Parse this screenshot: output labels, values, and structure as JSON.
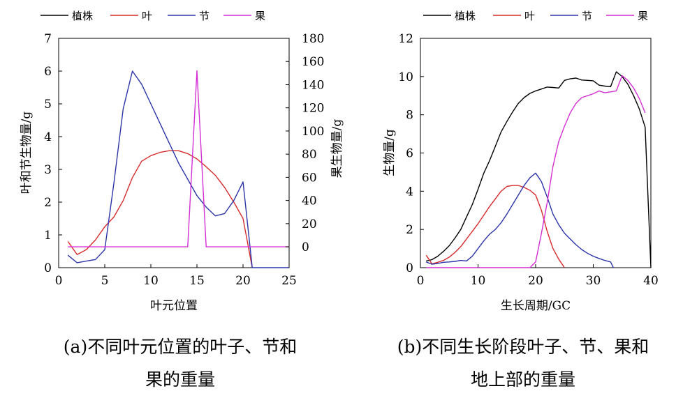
{
  "chart_data": [
    {
      "id": "a",
      "type": "line",
      "caption": [
        "(a)不同叶元位置的叶子、节和",
        "果的重量"
      ],
      "xlabel": "叶元位置",
      "ylabel": "叶和节生物量/g",
      "y2label": "果生物量/g",
      "xlim": [
        0,
        25
      ],
      "ylim": [
        0,
        7
      ],
      "y2lim": [
        -18,
        180
      ],
      "xticks": [
        0,
        5,
        10,
        15,
        20,
        25
      ],
      "yticks": [
        0,
        1,
        2,
        3,
        4,
        5,
        6,
        7
      ],
      "y2ticks": [
        0,
        20,
        40,
        60,
        80,
        100,
        120,
        140,
        160,
        180
      ],
      "legend_position": "top",
      "series": [
        {
          "name": "植株",
          "color": "#000000",
          "axis": "left",
          "x": [],
          "y": []
        },
        {
          "name": "叶",
          "color": "#d62c2c",
          "axis": "left",
          "x": [
            1,
            2,
            3,
            4,
            5,
            6,
            7,
            8,
            9,
            10,
            11,
            12,
            13,
            14,
            15,
            16,
            17,
            18,
            19,
            20,
            21
          ],
          "y": [
            0.8,
            0.4,
            0.55,
            0.85,
            1.25,
            1.55,
            2.05,
            2.75,
            3.25,
            3.42,
            3.52,
            3.57,
            3.57,
            3.48,
            3.32,
            3.08,
            2.82,
            2.45,
            2.0,
            1.5,
            0.0
          ]
        },
        {
          "name": "节",
          "color": "#2c35a8",
          "axis": "left",
          "x": [
            1,
            2,
            3,
            4,
            5,
            6,
            7,
            8,
            9,
            10,
            11,
            12,
            13,
            14,
            15,
            16,
            17,
            18,
            19,
            20,
            21,
            22,
            25
          ],
          "y": [
            0.38,
            0.15,
            0.2,
            0.25,
            0.55,
            2.6,
            4.85,
            6.0,
            5.6,
            5.0,
            4.4,
            3.8,
            3.2,
            2.7,
            2.2,
            1.85,
            1.58,
            1.65,
            2.05,
            2.62,
            0.0,
            0.0,
            0.0
          ]
        },
        {
          "name": "果",
          "color": "#d42fd4",
          "axis": "right",
          "x": [
            1,
            14,
            15,
            16,
            25
          ],
          "y": [
            0,
            0,
            152,
            0,
            0
          ]
        }
      ]
    },
    {
      "id": "b",
      "type": "line",
      "caption": [
        "(b)不同生长阶段叶子、节、果和",
        "地上部的重量"
      ],
      "xlabel": "生长周期/GC",
      "ylabel": "生物量/g",
      "xlim": [
        0,
        40
      ],
      "ylim": [
        0,
        12
      ],
      "xticks": [
        0,
        10,
        20,
        30,
        40
      ],
      "yticks": [
        0,
        2,
        4,
        6,
        8,
        10,
        12
      ],
      "legend_position": "top",
      "series": [
        {
          "name": "植株",
          "color": "#000000",
          "x": [
            1,
            2,
            3,
            4,
            5,
            6,
            7,
            8,
            9,
            10,
            11,
            12,
            13,
            14,
            15,
            16,
            17,
            18,
            19,
            20,
            21,
            22,
            23,
            24,
            25,
            26,
            27,
            28,
            29,
            30,
            31,
            32,
            33,
            34,
            35,
            36,
            37,
            38,
            39,
            40
          ],
          "y": [
            0.35,
            0.42,
            0.6,
            0.85,
            1.15,
            1.55,
            2.0,
            2.65,
            3.3,
            4.1,
            4.95,
            5.6,
            6.35,
            7.1,
            7.65,
            8.15,
            8.6,
            8.9,
            9.12,
            9.25,
            9.35,
            9.45,
            9.43,
            9.4,
            9.8,
            9.88,
            9.92,
            9.82,
            9.8,
            9.78,
            9.55,
            9.5,
            9.47,
            10.25,
            10.0,
            9.6,
            9.0,
            8.3,
            7.35,
            0.0
          ]
        },
        {
          "name": "叶",
          "color": "#d62c2c",
          "x": [
            1,
            2,
            3,
            4,
            5,
            6,
            7,
            8,
            9,
            10,
            11,
            12,
            13,
            14,
            15,
            16,
            17,
            18,
            19,
            20,
            21,
            22,
            23,
            24,
            25
          ],
          "y": [
            0.65,
            0.2,
            0.28,
            0.38,
            0.55,
            0.8,
            1.1,
            1.5,
            1.9,
            2.3,
            2.75,
            3.2,
            3.6,
            4.0,
            4.25,
            4.3,
            4.3,
            4.2,
            4.05,
            3.8,
            3.0,
            1.9,
            1.0,
            0.45,
            0.0
          ]
        },
        {
          "name": "节",
          "color": "#2c35a8",
          "x": [
            1,
            2,
            3,
            4,
            5,
            6,
            7,
            8,
            9,
            10,
            11,
            12,
            13,
            14,
            15,
            16,
            17,
            18,
            19,
            20,
            21,
            22,
            23,
            24,
            25,
            26,
            27,
            28,
            29,
            30,
            31,
            32,
            33,
            33.5
          ],
          "y": [
            0.3,
            0.18,
            0.22,
            0.28,
            0.3,
            0.33,
            0.38,
            0.35,
            0.6,
            1.0,
            1.4,
            1.75,
            2.0,
            2.35,
            2.8,
            3.3,
            3.8,
            4.3,
            4.7,
            4.95,
            4.5,
            3.7,
            2.8,
            2.25,
            1.8,
            1.5,
            1.2,
            0.95,
            0.75,
            0.6,
            0.48,
            0.38,
            0.3,
            0.0
          ]
        },
        {
          "name": "果",
          "color": "#d42fd4",
          "x": [
            1,
            19,
            20,
            21,
            22,
            23,
            24,
            25,
            26,
            27,
            28,
            29,
            30,
            31,
            32,
            33,
            34,
            35,
            36,
            37,
            38,
            39
          ],
          "y": [
            0,
            0,
            0.3,
            1.8,
            3.4,
            5.3,
            6.6,
            7.4,
            8.1,
            8.6,
            8.9,
            9.0,
            9.1,
            9.25,
            9.15,
            9.2,
            9.25,
            10.05,
            9.8,
            9.4,
            8.85,
            8.1
          ]
        }
      ]
    }
  ]
}
